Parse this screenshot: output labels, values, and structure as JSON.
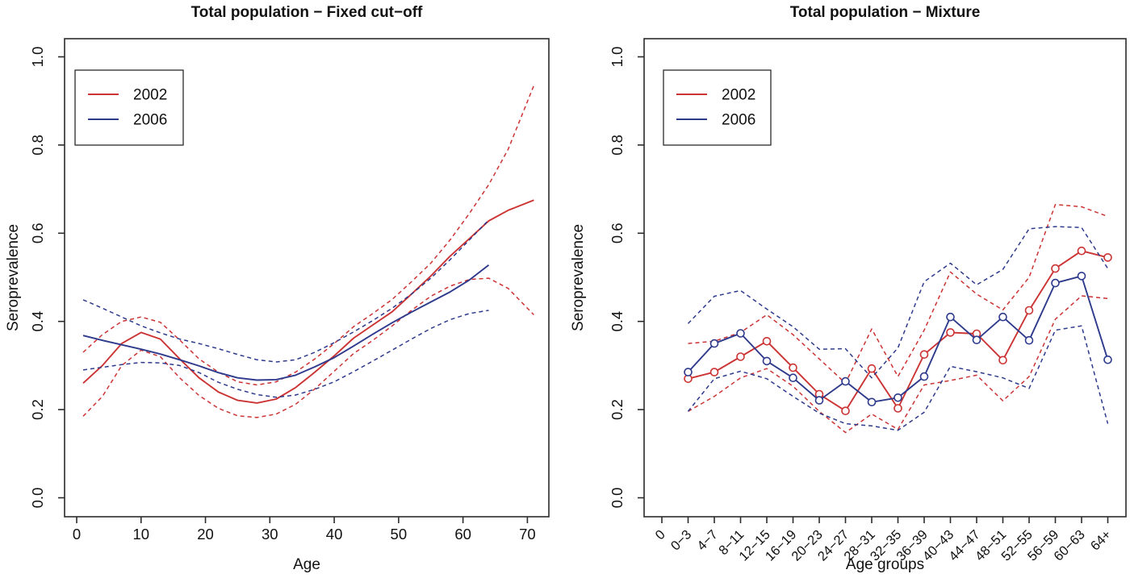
{
  "figure": {
    "background": "#ffffff",
    "axis_color": "#2b2b2b",
    "text_color": "#111111"
  },
  "colors": {
    "red": "#CC3333",
    "blue": "#2E3A8C"
  },
  "legend": {
    "items": [
      {
        "label": "2002",
        "color_key": "red"
      },
      {
        "label": "2006",
        "color_key": "blue"
      }
    ]
  },
  "chart_data": [
    {
      "type": "line",
      "title": "Total population − Fixed cut−off",
      "xlabel": "Age",
      "ylabel": "Seroprevalence",
      "xlim": [
        -2,
        75
      ],
      "ylim": [
        0,
        1
      ],
      "grid": false,
      "legend_position": "top-left",
      "x_ticks": [
        0,
        10,
        20,
        30,
        40,
        50,
        60,
        70
      ],
      "y_ticks": [
        0.0,
        0.2,
        0.4,
        0.6,
        0.8,
        1.0
      ],
      "y_tick_labels": [
        "0.0",
        "0.2",
        "0.4",
        "0.6",
        "0.8",
        "1.0"
      ],
      "series": [
        {
          "name": "2002 mean",
          "color_key": "red",
          "dashed": false,
          "markers": false,
          "x": [
            1,
            4,
            7,
            10,
            13,
            16,
            19,
            22,
            25,
            28,
            31,
            34,
            37,
            40,
            43,
            46,
            49,
            52,
            55,
            58,
            61,
            64,
            67,
            71
          ],
          "y": [
            0.26,
            0.3,
            0.35,
            0.375,
            0.36,
            0.315,
            0.272,
            0.24,
            0.221,
            0.215,
            0.224,
            0.25,
            0.285,
            0.322,
            0.362,
            0.392,
            0.422,
            0.462,
            0.503,
            0.548,
            0.588,
            0.628,
            0.652,
            0.675
          ]
        },
        {
          "name": "2002 CI upper",
          "color_key": "red",
          "dashed": true,
          "markers": false,
          "x": [
            1,
            4,
            7,
            10,
            13,
            16,
            19,
            22,
            25,
            28,
            31,
            34,
            37,
            40,
            43,
            46,
            49,
            52,
            55,
            58,
            61,
            64,
            67,
            71
          ],
          "y": [
            0.33,
            0.37,
            0.4,
            0.41,
            0.398,
            0.358,
            0.315,
            0.285,
            0.263,
            0.256,
            0.263,
            0.285,
            0.315,
            0.35,
            0.388,
            0.418,
            0.45,
            0.49,
            0.532,
            0.585,
            0.645,
            0.71,
            0.79,
            0.935
          ]
        },
        {
          "name": "2002 CI lower",
          "color_key": "red",
          "dashed": true,
          "markers": false,
          "x": [
            1,
            4,
            7,
            10,
            13,
            16,
            19,
            22,
            25,
            28,
            31,
            34,
            37,
            40,
            43,
            46,
            49,
            52,
            55,
            58,
            61,
            64,
            67,
            71
          ],
          "y": [
            0.185,
            0.23,
            0.3,
            0.335,
            0.32,
            0.272,
            0.232,
            0.203,
            0.186,
            0.182,
            0.19,
            0.212,
            0.247,
            0.287,
            0.327,
            0.357,
            0.39,
            0.425,
            0.457,
            0.48,
            0.495,
            0.498,
            0.475,
            0.415
          ]
        },
        {
          "name": "2006 mean",
          "color_key": "blue",
          "dashed": false,
          "markers": false,
          "x": [
            1,
            4,
            7,
            10,
            13,
            16,
            19,
            22,
            25,
            28,
            31,
            34,
            37,
            40,
            43,
            46,
            49,
            52,
            55,
            58,
            61,
            64
          ],
          "y": [
            0.368,
            0.357,
            0.347,
            0.337,
            0.326,
            0.313,
            0.299,
            0.284,
            0.272,
            0.267,
            0.268,
            0.278,
            0.297,
            0.318,
            0.344,
            0.371,
            0.397,
            0.421,
            0.444,
            0.467,
            0.494,
            0.528
          ]
        },
        {
          "name": "2006 CI upper",
          "color_key": "blue",
          "dashed": true,
          "markers": false,
          "x": [
            1,
            4,
            7,
            10,
            13,
            16,
            19,
            22,
            25,
            28,
            31,
            34,
            37,
            40,
            43,
            46,
            49,
            52,
            55,
            58,
            61,
            64
          ],
          "y": [
            0.449,
            0.43,
            0.41,
            0.39,
            0.374,
            0.36,
            0.35,
            0.338,
            0.325,
            0.313,
            0.308,
            0.313,
            0.33,
            0.352,
            0.376,
            0.402,
            0.43,
            0.462,
            0.498,
            0.54,
            0.585,
            0.63
          ]
        },
        {
          "name": "2006 CI lower",
          "color_key": "blue",
          "dashed": true,
          "markers": false,
          "x": [
            1,
            4,
            7,
            10,
            13,
            16,
            19,
            22,
            25,
            28,
            31,
            34,
            37,
            40,
            43,
            46,
            49,
            52,
            55,
            58,
            61,
            64
          ],
          "y": [
            0.29,
            0.296,
            0.302,
            0.307,
            0.306,
            0.3,
            0.284,
            0.262,
            0.246,
            0.234,
            0.228,
            0.233,
            0.246,
            0.263,
            0.286,
            0.31,
            0.335,
            0.36,
            0.384,
            0.404,
            0.418,
            0.425
          ]
        }
      ]
    },
    {
      "type": "line",
      "title": "Total population − Mixture",
      "xlabel": "Age groups",
      "ylabel": "Seroprevalence",
      "ylim": [
        0,
        1
      ],
      "grid": false,
      "legend_position": "top-left",
      "categories": [
        "0",
        "0−3",
        "4−7",
        "8−11",
        "12−15",
        "16−19",
        "20−23",
        "24−27",
        "28−31",
        "32−35",
        "36−39",
        "40−43",
        "44−47",
        "48−51",
        "52−55",
        "56−59",
        "60−63",
        "64+"
      ],
      "y_ticks": [
        0.0,
        0.2,
        0.4,
        0.6,
        0.8,
        1.0
      ],
      "y_tick_labels": [
        "0.0",
        "0.2",
        "0.4",
        "0.6",
        "0.8",
        "1.0"
      ],
      "series": [
        {
          "name": "2002 mean",
          "color_key": "red",
          "dashed": false,
          "markers": true,
          "start_index": 1,
          "values": [
            0.27,
            0.285,
            0.32,
            0.355,
            0.295,
            0.235,
            0.197,
            0.293,
            0.203,
            0.325,
            0.375,
            0.372,
            0.312,
            0.425,
            0.52,
            0.56,
            0.545
          ]
        },
        {
          "name": "2002 CI upper",
          "color_key": "red",
          "dashed": true,
          "markers": false,
          "start_index": 1,
          "values": [
            0.35,
            0.355,
            0.375,
            0.415,
            0.37,
            0.315,
            0.26,
            0.383,
            0.275,
            0.38,
            0.512,
            0.462,
            0.426,
            0.5,
            0.665,
            0.66,
            0.638
          ]
        },
        {
          "name": "2002 CI lower",
          "color_key": "red",
          "dashed": true,
          "markers": false,
          "start_index": 1,
          "values": [
            0.196,
            0.23,
            0.272,
            0.293,
            0.253,
            0.196,
            0.148,
            0.19,
            0.155,
            0.256,
            0.266,
            0.278,
            0.22,
            0.275,
            0.405,
            0.458,
            0.452
          ]
        },
        {
          "name": "2006 mean",
          "color_key": "blue",
          "dashed": false,
          "markers": true,
          "start_index": 1,
          "values": [
            0.285,
            0.35,
            0.373,
            0.31,
            0.272,
            0.221,
            0.264,
            0.217,
            0.227,
            0.275,
            0.41,
            0.358,
            0.41,
            0.357,
            0.487,
            0.503,
            0.313
          ]
        },
        {
          "name": "2006 CI upper",
          "color_key": "blue",
          "dashed": true,
          "markers": false,
          "start_index": 1,
          "values": [
            0.395,
            0.457,
            0.47,
            0.428,
            0.388,
            0.337,
            0.338,
            0.272,
            0.34,
            0.49,
            0.532,
            0.483,
            0.518,
            0.61,
            0.615,
            0.613,
            0.52
          ]
        },
        {
          "name": "2006 CI lower",
          "color_key": "blue",
          "dashed": true,
          "markers": false,
          "start_index": 1,
          "values": [
            0.196,
            0.27,
            0.287,
            0.27,
            0.23,
            0.192,
            0.168,
            0.163,
            0.153,
            0.194,
            0.298,
            0.286,
            0.272,
            0.248,
            0.38,
            0.39,
            0.168
          ]
        }
      ]
    }
  ]
}
